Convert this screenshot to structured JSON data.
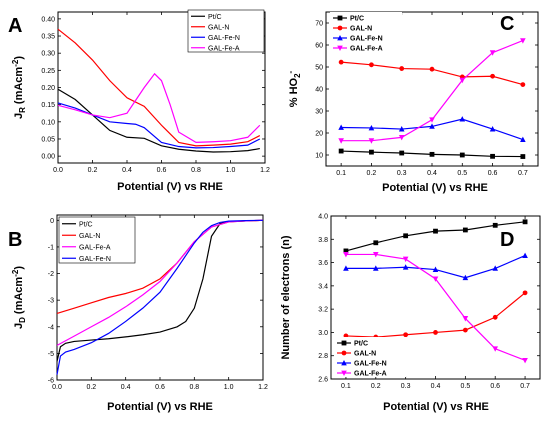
{
  "chart_data": [
    {
      "panel": "A",
      "type": "line",
      "xlabel": "Potential (V) vs RHE",
      "ylabel": "J_R (mAcm^-2)",
      "ylabel_main": "J",
      "ylabel_sub": "R",
      "ylabel_unit": "(mAcm",
      "ylabel_exp": "-2",
      "ylabel_close": ")",
      "xlim": [
        0.0,
        1.2
      ],
      "ylim": [
        -0.02,
        0.42
      ],
      "xticks": [
        "0.0",
        "0.2",
        "0.4",
        "0.6",
        "0.8",
        "1.0",
        "1.2"
      ],
      "yticks": [
        "0.00",
        "0.05",
        "0.10",
        "0.15",
        "0.20",
        "0.25",
        "0.30",
        "0.35",
        "0.40"
      ],
      "legend_position": "top-right",
      "series": [
        {
          "name": "Pt/C",
          "color": "#000000",
          "x": [
            0,
            0.1,
            0.2,
            0.3,
            0.4,
            0.5,
            0.6,
            0.7,
            0.8,
            0.9,
            1.0,
            1.1,
            1.17
          ],
          "y": [
            0.195,
            0.165,
            0.12,
            0.075,
            0.055,
            0.052,
            0.03,
            0.02,
            0.015,
            0.012,
            0.013,
            0.016,
            0.022
          ]
        },
        {
          "name": "GAL-N",
          "color": "#ff0000",
          "x": [
            0,
            0.1,
            0.2,
            0.3,
            0.4,
            0.5,
            0.6,
            0.7,
            0.8,
            0.9,
            1.0,
            1.1,
            1.17
          ],
          "y": [
            0.37,
            0.33,
            0.28,
            0.22,
            0.17,
            0.145,
            0.09,
            0.04,
            0.03,
            0.032,
            0.035,
            0.042,
            0.06
          ]
        },
        {
          "name": "GAL-Fe-N",
          "color": "#0000ff",
          "x": [
            0,
            0.1,
            0.2,
            0.3,
            0.4,
            0.45,
            0.5,
            0.6,
            0.7,
            0.8,
            0.9,
            1.0,
            1.1,
            1.17
          ],
          "y": [
            0.155,
            0.14,
            0.12,
            0.1,
            0.095,
            0.093,
            0.083,
            0.04,
            0.028,
            0.024,
            0.025,
            0.028,
            0.032,
            0.05
          ]
        },
        {
          "name": "GAL-Fe-A",
          "color": "#ff00ff",
          "x": [
            0,
            0.1,
            0.2,
            0.3,
            0.4,
            0.5,
            0.56,
            0.6,
            0.65,
            0.7,
            0.8,
            0.9,
            1.0,
            1.1,
            1.17
          ],
          "y": [
            0.148,
            0.135,
            0.12,
            0.112,
            0.125,
            0.2,
            0.24,
            0.22,
            0.15,
            0.07,
            0.04,
            0.042,
            0.045,
            0.055,
            0.09
          ]
        }
      ]
    },
    {
      "panel": "B",
      "type": "line",
      "xlabel": "Potential (V) vs RHE",
      "ylabel": "J_D (mAcm^-2)",
      "ylabel_main": "J",
      "ylabel_sub": "D",
      "ylabel_unit": "(mAcm",
      "ylabel_exp": "-2",
      "ylabel_close": ")",
      "xlim": [
        0.0,
        1.2
      ],
      "ylim": [
        -6,
        0.2
      ],
      "xticks": [
        "0.0",
        "0.2",
        "0.4",
        "0.6",
        "0.8",
        "1.0",
        "1.2"
      ],
      "yticks": [
        "-6",
        "-5",
        "-4",
        "-3",
        "-2",
        "-1",
        "0"
      ],
      "legend_position": "top-left",
      "series": [
        {
          "name": "Pt/C",
          "color": "#000000",
          "x": [
            0,
            0.02,
            0.05,
            0.1,
            0.2,
            0.3,
            0.4,
            0.5,
            0.6,
            0.7,
            0.75,
            0.8,
            0.85,
            0.9,
            0.95,
            1.0,
            1.1,
            1.2
          ],
          "y": [
            -5.3,
            -4.75,
            -4.62,
            -4.55,
            -4.5,
            -4.45,
            -4.38,
            -4.3,
            -4.2,
            -4.0,
            -3.8,
            -3.3,
            -2.2,
            -0.6,
            -0.12,
            -0.05,
            -0.02,
            0.0
          ]
        },
        {
          "name": "GAL-N",
          "color": "#ff0000",
          "x": [
            0,
            0.1,
            0.2,
            0.3,
            0.4,
            0.5,
            0.6,
            0.7,
            0.8,
            0.9,
            1.0,
            1.1,
            1.2
          ],
          "y": [
            -3.5,
            -3.3,
            -3.1,
            -2.9,
            -2.75,
            -2.55,
            -2.2,
            -1.6,
            -0.8,
            -0.25,
            -0.06,
            -0.02,
            0.0
          ]
        },
        {
          "name": "GAL-Fe-A",
          "color": "#ff00ff",
          "x": [
            0,
            0.1,
            0.2,
            0.3,
            0.4,
            0.5,
            0.6,
            0.7,
            0.8,
            0.9,
            1.0,
            1.1,
            1.2
          ],
          "y": [
            -4.7,
            -4.35,
            -4.0,
            -3.65,
            -3.25,
            -2.8,
            -2.3,
            -1.6,
            -0.8,
            -0.25,
            -0.06,
            -0.02,
            0.0
          ]
        },
        {
          "name": "GAL-Fe-N",
          "color": "#0000ff",
          "x": [
            0,
            0.02,
            0.05,
            0.1,
            0.2,
            0.3,
            0.4,
            0.5,
            0.6,
            0.7,
            0.8,
            0.85,
            0.9,
            0.95,
            1.0,
            1.1,
            1.2
          ],
          "y": [
            -5.8,
            -5.1,
            -4.95,
            -4.85,
            -4.6,
            -4.25,
            -3.8,
            -3.3,
            -2.7,
            -1.8,
            -0.85,
            -0.45,
            -0.2,
            -0.08,
            -0.03,
            -0.01,
            0.0
          ]
        }
      ]
    },
    {
      "panel": "C",
      "type": "line",
      "xlabel": "Potential (V) vs RHE",
      "ylabel": "% HO2-",
      "ylabel_main": "% HO",
      "ylabel_sub": "2",
      "ylabel_exp": "-",
      "xlim": [
        0.05,
        0.75
      ],
      "ylim": [
        5,
        75
      ],
      "xticks": [
        "0.1",
        "0.2",
        "0.3",
        "0.4",
        "0.5",
        "0.6",
        "0.7"
      ],
      "yticks": [
        "10",
        "20",
        "30",
        "40",
        "50",
        "60",
        "70"
      ],
      "legend_position": "top-left",
      "series": [
        {
          "name": "Pt/C",
          "color": "#000000",
          "marker": "square",
          "x": [
            0.1,
            0.2,
            0.3,
            0.4,
            0.5,
            0.6,
            0.7
          ],
          "y": [
            11.8,
            11.3,
            10.9,
            10.3,
            10.0,
            9.4,
            9.3
          ]
        },
        {
          "name": "GAL-N",
          "color": "#ff0000",
          "marker": "circle",
          "x": [
            0.1,
            0.2,
            0.3,
            0.4,
            0.5,
            0.6,
            0.7
          ],
          "y": [
            52.2,
            51.0,
            49.3,
            49.0,
            45.5,
            45.8,
            42.0
          ]
        },
        {
          "name": "GAL-Fe-N",
          "color": "#0000ff",
          "marker": "triangle-up",
          "x": [
            0.1,
            0.2,
            0.3,
            0.4,
            0.5,
            0.6,
            0.7
          ],
          "y": [
            22.5,
            22.3,
            21.8,
            23.0,
            26.3,
            21.8,
            17.0
          ]
        },
        {
          "name": "GAL-Fe-A",
          "color": "#ff00ff",
          "marker": "triangle-down",
          "x": [
            0.1,
            0.2,
            0.3,
            0.4,
            0.5,
            0.6,
            0.7
          ],
          "y": [
            16.5,
            16.5,
            18.0,
            26.0,
            44.0,
            56.5,
            62.0
          ]
        }
      ]
    },
    {
      "panel": "D",
      "type": "line",
      "xlabel": "Potential (V) vs RHE",
      "ylabel": "Number of electrons (n)",
      "xlim": [
        0.05,
        0.75
      ],
      "ylim": [
        2.6,
        4.0
      ],
      "xticks": [
        "0.1",
        "0.2",
        "0.3",
        "0.4",
        "0.5",
        "0.6",
        "0.7"
      ],
      "yticks": [
        "2.6",
        "2.8",
        "3.0",
        "3.2",
        "3.4",
        "3.6",
        "3.8",
        "4.0"
      ],
      "legend_position": "bottom-left",
      "series": [
        {
          "name": "Pt/C",
          "color": "#000000",
          "marker": "square",
          "x": [
            0.1,
            0.2,
            0.3,
            0.4,
            0.5,
            0.6,
            0.7
          ],
          "y": [
            3.7,
            3.77,
            3.83,
            3.87,
            3.88,
            3.92,
            3.95
          ]
        },
        {
          "name": "GAL-N",
          "color": "#ff0000",
          "marker": "circle",
          "x": [
            0.1,
            0.2,
            0.3,
            0.4,
            0.5,
            0.6,
            0.7
          ],
          "y": [
            2.97,
            2.96,
            2.98,
            3.0,
            3.02,
            3.13,
            3.34
          ]
        },
        {
          "name": "GAL-Fe-N",
          "color": "#0000ff",
          "marker": "triangle-up",
          "x": [
            0.1,
            0.2,
            0.3,
            0.4,
            0.5,
            0.6,
            0.7
          ],
          "y": [
            3.55,
            3.55,
            3.56,
            3.54,
            3.47,
            3.55,
            3.66
          ]
        },
        {
          "name": "GAL-Fe-A",
          "color": "#ff00ff",
          "marker": "triangle-down",
          "x": [
            0.1,
            0.2,
            0.3,
            0.4,
            0.5,
            0.6,
            0.7
          ],
          "y": [
            3.67,
            3.67,
            3.63,
            3.46,
            3.12,
            2.86,
            2.76
          ]
        }
      ]
    }
  ]
}
